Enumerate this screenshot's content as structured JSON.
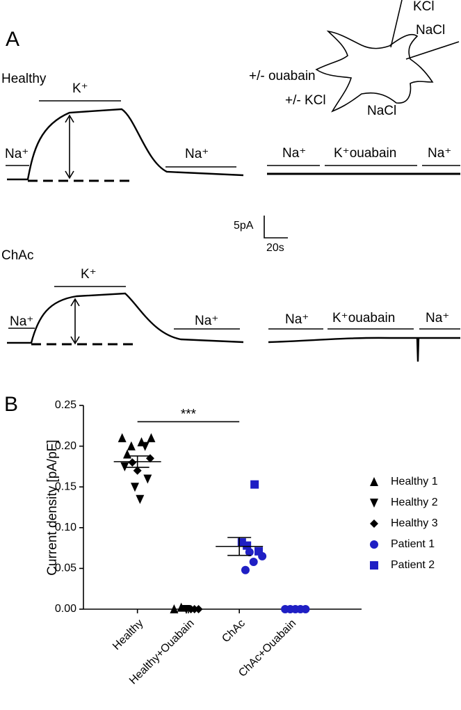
{
  "panel_a": {
    "label": "A",
    "healthy": {
      "title": "Healthy",
      "labels": [
        "Na⁺",
        "K⁺",
        "Na⁺",
        "Na⁺",
        "K⁺ouabain",
        "Na⁺"
      ]
    },
    "chac": {
      "title": "ChAc",
      "labels": [
        "Na⁺",
        "K⁺",
        "Na⁺",
        "Na⁺",
        "K⁺ouabain",
        "Na⁺"
      ]
    },
    "scale_bar": {
      "current": "5pA",
      "time": "20s"
    },
    "diagram": {
      "labels": [
        "KCl",
        "NaCl",
        "+/- ouabain",
        "+/- KCl",
        "NaCl"
      ]
    }
  },
  "chart_data": {
    "type": "scatter",
    "panel_label": "B",
    "y_label": "Current density [pA/pF]",
    "categories": [
      "Healthy",
      "Healthy+Ouabain",
      "ChAc",
      "ChAc+Ouabain"
    ],
    "xlim": [
      -1.06,
      4.4
    ],
    "ylim": [
      0,
      0.25
    ],
    "yticks": [
      {
        "value": 0,
        "label": "0.00"
      },
      0.05,
      {
        "value": 0.1,
        "label": "0.10"
      },
      0.15,
      {
        "value": 0.2,
        "label": "0.20"
      },
      0.25
    ],
    "series": [
      {
        "name": "Healthy 1",
        "color": "#000000",
        "marker": "triangle-up",
        "x": [
          -0.3,
          -0.12,
          0.08,
          0.27,
          -0.2,
          0.72,
          0.86
        ],
        "values": [
          0.21,
          0.2,
          0.205,
          0.21,
          0.19,
          0,
          0.002
        ]
      },
      {
        "name": "Healthy 2",
        "color": "#000000",
        "marker": "triangle-down",
        "x": [
          0.05,
          -0.05,
          0.2,
          -0.25,
          0.15,
          0.96
        ],
        "values": [
          0.135,
          0.15,
          0.16,
          0.175,
          0.2,
          0
        ]
      },
      {
        "name": "Healthy 3",
        "color": "#000000",
        "marker": "diamond",
        "x": [
          -0.1,
          0.0,
          0.25,
          1.05,
          1.12,
          1.2
        ],
        "values": [
          0.18,
          0.17,
          0.185,
          0,
          0,
          0
        ]
      },
      {
        "name": "Patient 1",
        "color": "#1f1fc4",
        "marker": "circle",
        "x": [
          2.12,
          2.28,
          2.45,
          2.2,
          2.9,
          3.0,
          3.1,
          3.2,
          3.3
        ],
        "values": [
          0.048,
          0.058,
          0.065,
          0.07,
          0,
          0,
          0,
          0,
          0
        ]
      },
      {
        "name": "Patient 2",
        "color": "#1f1fc4",
        "marker": "square",
        "x": [
          2.3,
          2.05,
          2.38,
          2.15
        ],
        "values": [
          0.153,
          0.082,
          0.071,
          0.078
        ]
      }
    ],
    "mean": [
      0.181,
      null,
      0.077,
      null
    ],
    "sem": [
      0.007,
      null,
      0.011,
      null
    ],
    "significance": {
      "text": "***",
      "from": 0,
      "to": 2,
      "y": 0.23
    }
  }
}
